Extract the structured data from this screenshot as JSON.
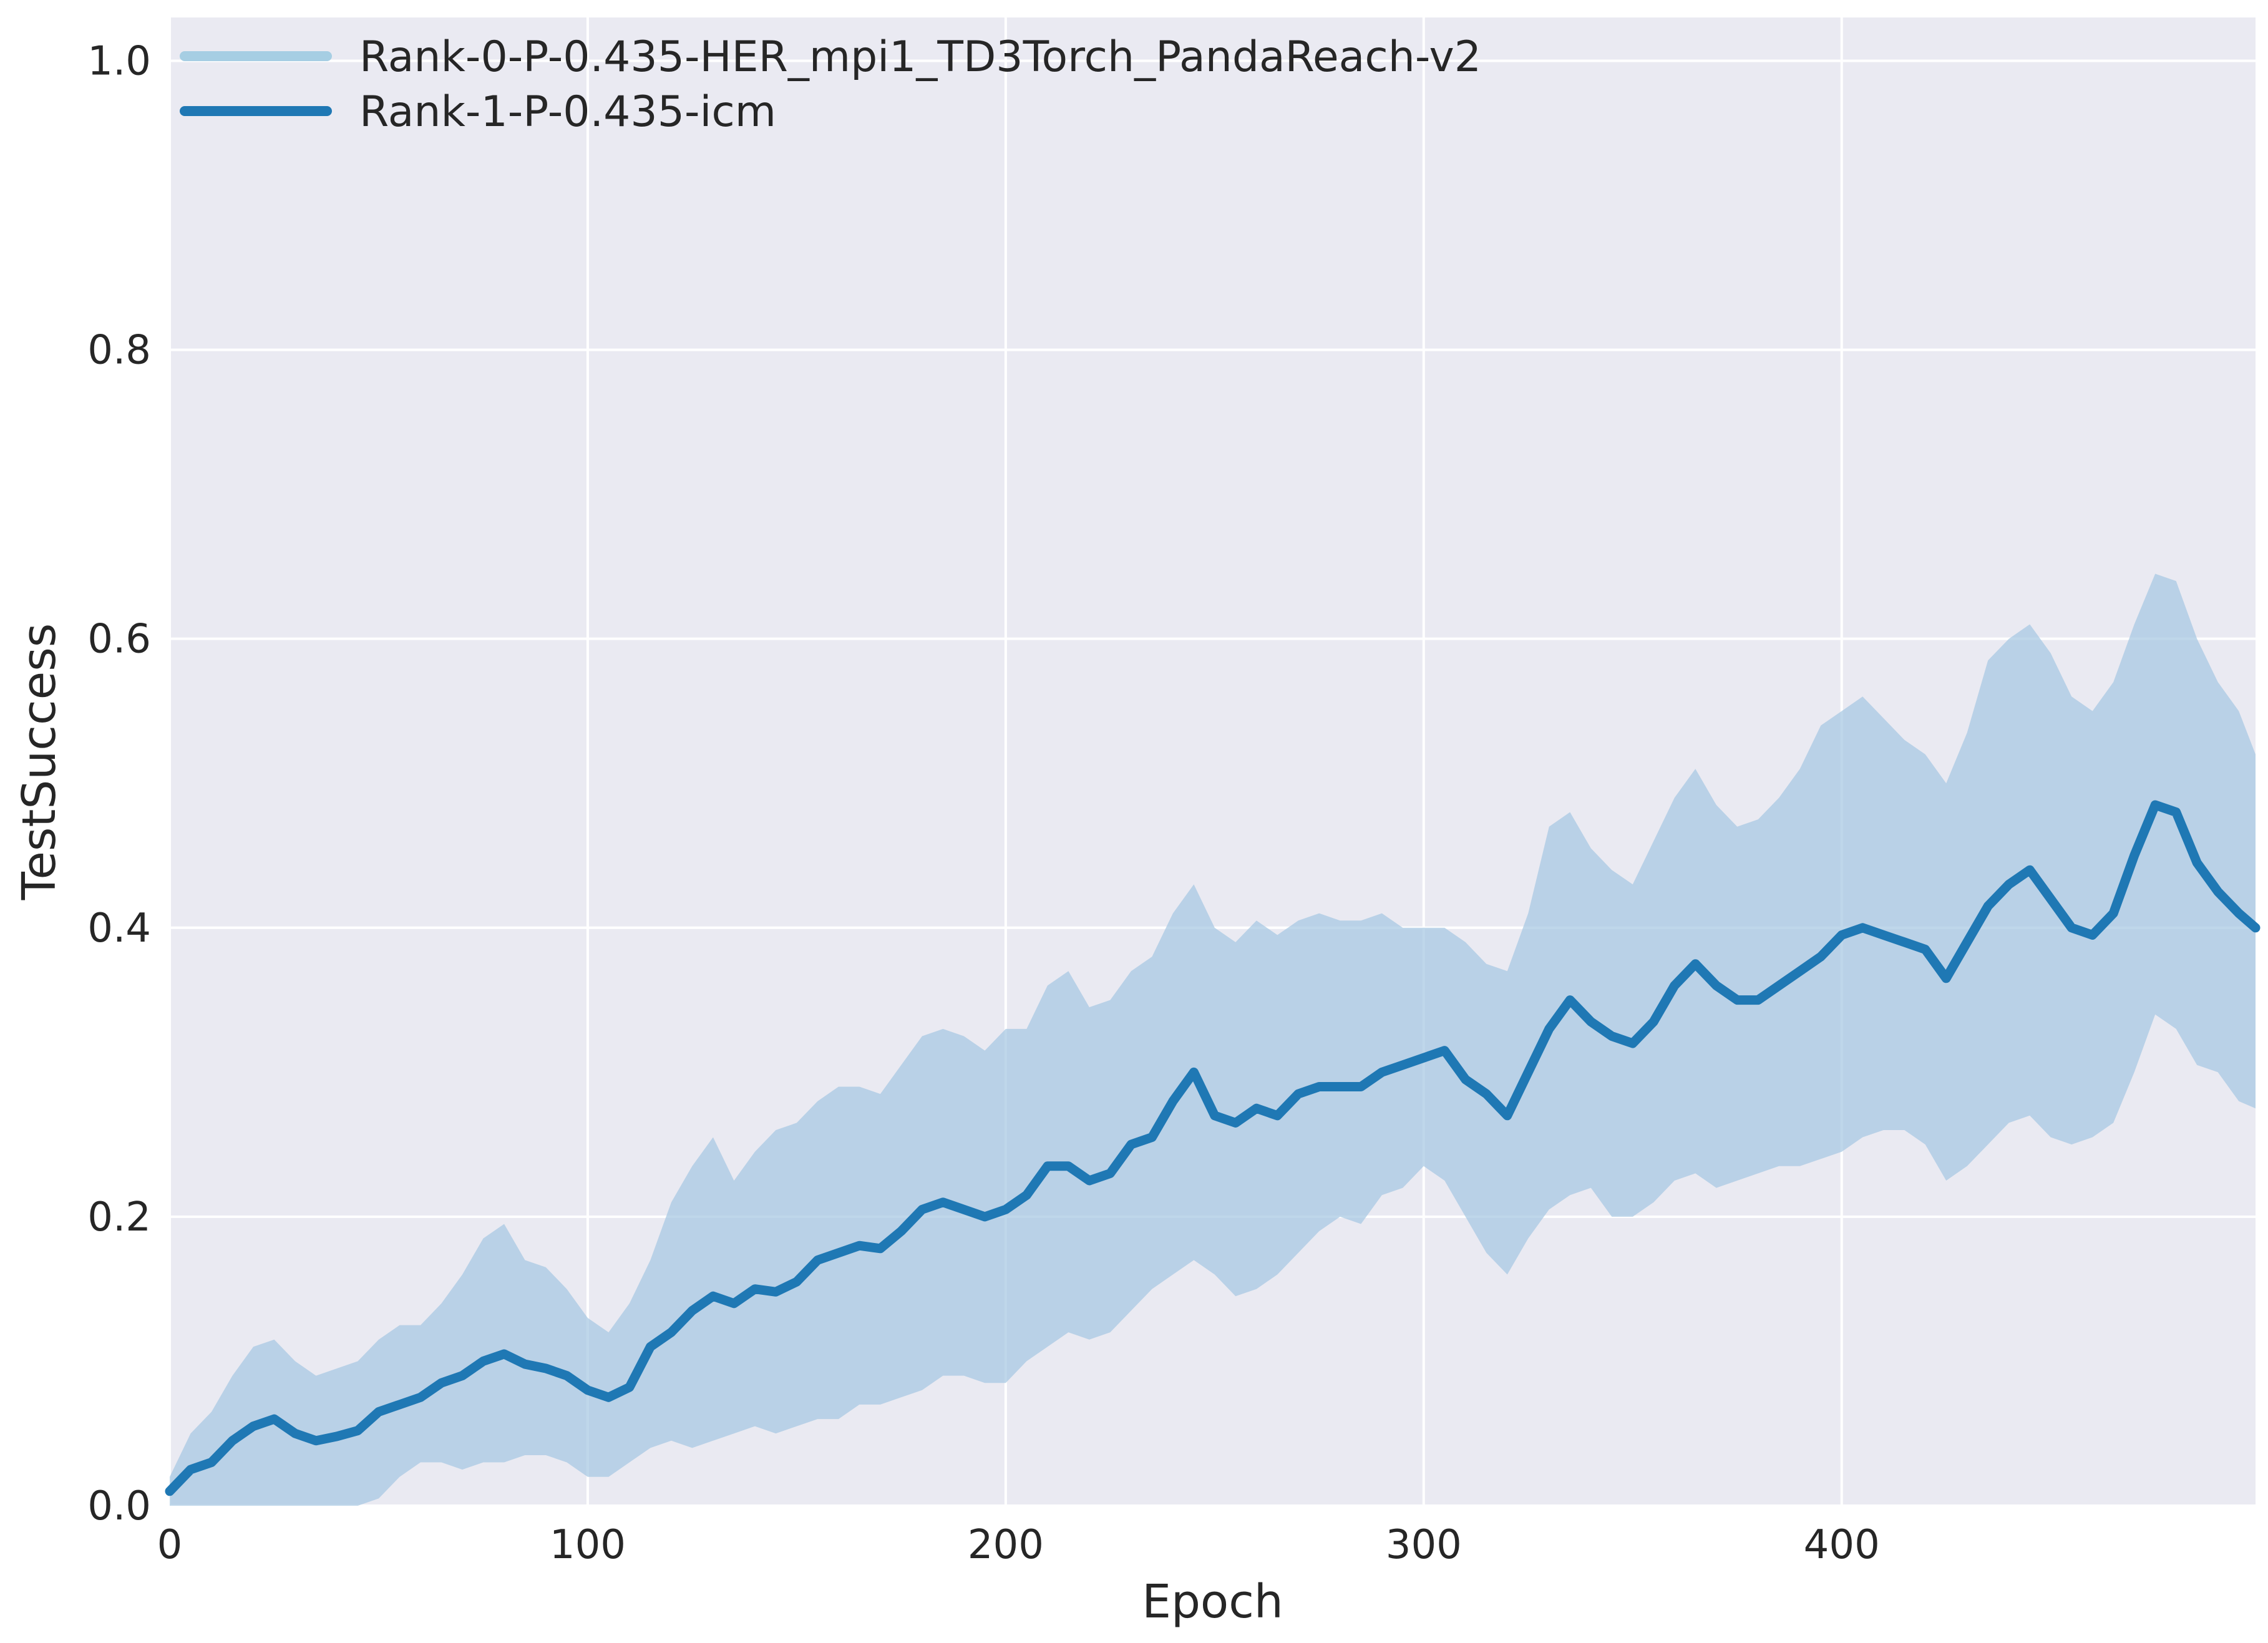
{
  "chart_data": {
    "type": "line",
    "title": "",
    "xlabel": "Epoch",
    "ylabel": "TestSuccess",
    "xlim": [
      0,
      499
    ],
    "ylim": [
      0,
      1.03
    ],
    "x_ticks": [
      0,
      100,
      200,
      300,
      400
    ],
    "x_tick_labels": [
      "0",
      "100",
      "200",
      "300",
      "400"
    ],
    "y_ticks": [
      0.0,
      0.2,
      0.4,
      0.6,
      0.8,
      1.0
    ],
    "y_tick_labels": [
      "0.0",
      "0.2",
      "0.4",
      "0.6",
      "0.8",
      "1.0"
    ],
    "grid": true,
    "legend_position": "top-left",
    "legend": [
      {
        "label": "Rank-0-P-0.435-HER_mpi1_TD3Torch_PandaReach-v2",
        "color": "#a6cee3"
      },
      {
        "label": "Rank-1-P-0.435-icm",
        "color": "#1f78b4"
      }
    ],
    "colors": {
      "background": "#eaeaf2",
      "grid": "#ffffff",
      "mean_line": "#1f78b4",
      "band": "#a6c8e2",
      "legend_light": "#a6cee3"
    },
    "series": [
      {
        "name": "Rank-1-P-0.435-icm",
        "x": [
          0,
          5,
          10,
          15,
          20,
          25,
          30,
          35,
          40,
          45,
          50,
          55,
          60,
          65,
          70,
          75,
          80,
          85,
          90,
          95,
          100,
          105,
          110,
          115,
          120,
          125,
          130,
          135,
          140,
          145,
          150,
          155,
          160,
          165,
          170,
          175,
          180,
          185,
          190,
          195,
          200,
          205,
          210,
          215,
          220,
          225,
          230,
          235,
          240,
          245,
          250,
          255,
          260,
          265,
          270,
          275,
          280,
          285,
          290,
          295,
          300,
          305,
          310,
          315,
          320,
          325,
          330,
          335,
          340,
          345,
          350,
          355,
          360,
          365,
          370,
          375,
          380,
          385,
          390,
          395,
          400,
          405,
          410,
          415,
          420,
          425,
          430,
          435,
          440,
          445,
          450,
          455,
          460,
          465,
          470,
          475,
          480,
          485,
          490,
          495,
          499
        ],
        "y": [
          0.01,
          0.025,
          0.03,
          0.045,
          0.055,
          0.06,
          0.05,
          0.045,
          0.048,
          0.052,
          0.065,
          0.07,
          0.075,
          0.085,
          0.09,
          0.1,
          0.105,
          0.098,
          0.095,
          0.09,
          0.08,
          0.075,
          0.082,
          0.11,
          0.12,
          0.135,
          0.145,
          0.14,
          0.15,
          0.148,
          0.155,
          0.17,
          0.175,
          0.18,
          0.178,
          0.19,
          0.205,
          0.21,
          0.205,
          0.2,
          0.205,
          0.215,
          0.235,
          0.235,
          0.225,
          0.23,
          0.25,
          0.255,
          0.28,
          0.3,
          0.27,
          0.265,
          0.275,
          0.27,
          0.285,
          0.29,
          0.29,
          0.29,
          0.3,
          0.305,
          0.31,
          0.315,
          0.295,
          0.285,
          0.27,
          0.3,
          0.33,
          0.35,
          0.335,
          0.325,
          0.32,
          0.335,
          0.36,
          0.375,
          0.36,
          0.35,
          0.35,
          0.36,
          0.37,
          0.38,
          0.395,
          0.4,
          0.395,
          0.39,
          0.385,
          0.365,
          0.39,
          0.415,
          0.43,
          0.44,
          0.42,
          0.4,
          0.395,
          0.41,
          0.45,
          0.485,
          0.48,
          0.445,
          0.425,
          0.41,
          0.4
        ],
        "lower": [
          0.0,
          0.0,
          0.0,
          0.0,
          0.0,
          0.0,
          0.0,
          0.0,
          0.0,
          0.0,
          0.005,
          0.02,
          0.03,
          0.03,
          0.025,
          0.03,
          0.03,
          0.035,
          0.035,
          0.03,
          0.02,
          0.02,
          0.03,
          0.04,
          0.045,
          0.04,
          0.045,
          0.05,
          0.055,
          0.05,
          0.055,
          0.06,
          0.06,
          0.07,
          0.07,
          0.075,
          0.08,
          0.09,
          0.09,
          0.085,
          0.085,
          0.1,
          0.11,
          0.12,
          0.115,
          0.12,
          0.135,
          0.15,
          0.16,
          0.17,
          0.16,
          0.145,
          0.15,
          0.16,
          0.175,
          0.19,
          0.2,
          0.195,
          0.215,
          0.22,
          0.235,
          0.225,
          0.2,
          0.175,
          0.16,
          0.185,
          0.205,
          0.215,
          0.22,
          0.2,
          0.2,
          0.21,
          0.225,
          0.23,
          0.22,
          0.225,
          0.23,
          0.235,
          0.235,
          0.24,
          0.245,
          0.255,
          0.26,
          0.26,
          0.25,
          0.225,
          0.235,
          0.25,
          0.265,
          0.27,
          0.255,
          0.25,
          0.255,
          0.265,
          0.3,
          0.34,
          0.33,
          0.305,
          0.3,
          0.28,
          0.275
        ],
        "upper": [
          0.02,
          0.05,
          0.065,
          0.09,
          0.11,
          0.115,
          0.1,
          0.09,
          0.095,
          0.1,
          0.115,
          0.125,
          0.125,
          0.14,
          0.16,
          0.185,
          0.195,
          0.17,
          0.165,
          0.15,
          0.13,
          0.12,
          0.14,
          0.17,
          0.21,
          0.235,
          0.255,
          0.225,
          0.245,
          0.26,
          0.265,
          0.28,
          0.29,
          0.29,
          0.285,
          0.305,
          0.325,
          0.33,
          0.325,
          0.315,
          0.33,
          0.33,
          0.36,
          0.37,
          0.345,
          0.35,
          0.37,
          0.38,
          0.41,
          0.43,
          0.4,
          0.39,
          0.405,
          0.395,
          0.405,
          0.41,
          0.405,
          0.405,
          0.41,
          0.4,
          0.4,
          0.4,
          0.39,
          0.375,
          0.37,
          0.41,
          0.47,
          0.48,
          0.455,
          0.44,
          0.43,
          0.46,
          0.49,
          0.51,
          0.485,
          0.47,
          0.475,
          0.49,
          0.51,
          0.54,
          0.55,
          0.56,
          0.545,
          0.53,
          0.52,
          0.5,
          0.535,
          0.585,
          0.6,
          0.61,
          0.59,
          0.56,
          0.55,
          0.57,
          0.61,
          0.645,
          0.64,
          0.6,
          0.57,
          0.55,
          0.52
        ]
      }
    ]
  }
}
